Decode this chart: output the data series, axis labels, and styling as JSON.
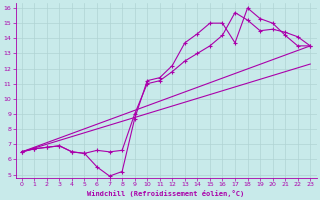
{
  "background_color": "#c8eaea",
  "grid_color": "#b0d4d4",
  "line_color": "#aa00aa",
  "marker": "+",
  "xlabel": "Windchill (Refroidissement éolien,°C)",
  "xlim": [
    -0.5,
    23.5
  ],
  "ylim": [
    4.8,
    16.3
  ],
  "xticks": [
    0,
    1,
    2,
    3,
    4,
    5,
    6,
    7,
    8,
    9,
    10,
    11,
    12,
    13,
    14,
    15,
    16,
    17,
    18,
    19,
    20,
    21,
    22,
    23
  ],
  "yticks": [
    5,
    6,
    7,
    8,
    9,
    10,
    11,
    12,
    13,
    14,
    15,
    16
  ],
  "series_wiggly1": {
    "x": [
      0,
      1,
      2,
      3,
      4,
      5,
      6,
      7,
      8,
      9,
      10,
      11,
      12,
      13,
      14,
      15,
      16,
      17,
      18,
      19,
      20,
      21,
      22,
      23
    ],
    "y": [
      6.5,
      6.7,
      6.8,
      6.9,
      6.5,
      6.4,
      5.5,
      4.9,
      5.2,
      8.7,
      11.2,
      11.4,
      12.2,
      13.7,
      14.3,
      15.0,
      15.0,
      13.7,
      16.0,
      15.3,
      15.0,
      14.2,
      13.5,
      13.5
    ]
  },
  "series_wiggly2": {
    "x": [
      0,
      1,
      2,
      3,
      4,
      5,
      6,
      7,
      8,
      9,
      10,
      11,
      12,
      13,
      14,
      15,
      16,
      17,
      18,
      19,
      20,
      21,
      22,
      23
    ],
    "y": [
      6.5,
      6.7,
      6.8,
      6.9,
      6.5,
      6.4,
      6.6,
      6.5,
      6.6,
      9.0,
      11.0,
      11.2,
      11.8,
      12.5,
      13.0,
      13.5,
      14.2,
      15.7,
      15.2,
      14.5,
      14.6,
      14.4,
      14.1,
      13.5
    ]
  },
  "series_line1": {
    "x": [
      0,
      23
    ],
    "y": [
      6.5,
      13.5
    ]
  },
  "series_line2": {
    "x": [
      0,
      23
    ],
    "y": [
      6.5,
      12.3
    ]
  }
}
